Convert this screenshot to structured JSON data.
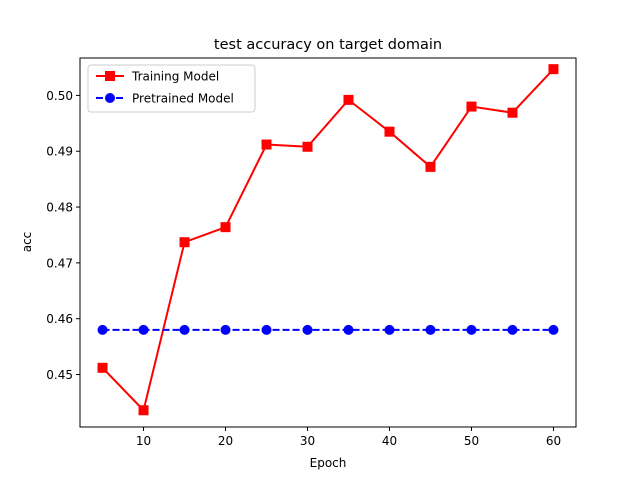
{
  "chart_data": {
    "type": "line",
    "title": "test accuracy on target domain",
    "xlabel": "Epoch",
    "ylabel": "acc",
    "xlim": [
      2.25,
      62.75
    ],
    "ylim": [
      0.4406,
      0.5067
    ],
    "xticks": [
      10,
      20,
      30,
      40,
      50,
      60
    ],
    "yticks": [
      0.45,
      0.46,
      0.47,
      0.48,
      0.49,
      0.5
    ],
    "grid": false,
    "legend_position": "top-left",
    "x": [
      5,
      10,
      15,
      20,
      25,
      30,
      35,
      40,
      45,
      50,
      55,
      60
    ],
    "series": [
      {
        "name": "Training Model",
        "color": "#ff0000",
        "marker": "square",
        "linestyle": "solid",
        "values": [
          0.4512,
          0.4436,
          0.4737,
          0.4764,
          0.4912,
          0.4908,
          0.4992,
          0.4935,
          0.4872,
          0.498,
          0.4969,
          0.5047
        ]
      },
      {
        "name": "Pretrained Model",
        "color": "#0000ff",
        "marker": "circle",
        "linestyle": "dashed",
        "values": [
          0.458,
          0.458,
          0.458,
          0.458,
          0.458,
          0.458,
          0.458,
          0.458,
          0.458,
          0.458,
          0.458,
          0.458
        ]
      }
    ]
  }
}
